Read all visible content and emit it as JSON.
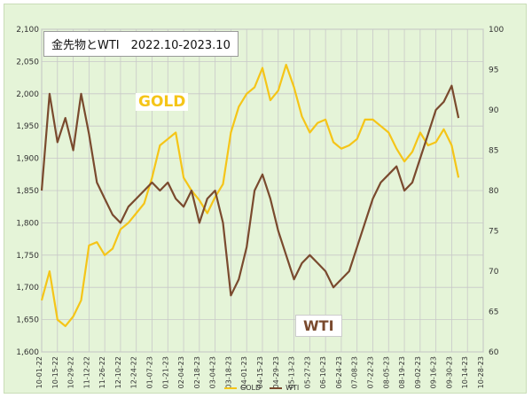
{
  "chart_data": {
    "type": "line",
    "title": "金先物とWTI　2022.10-2023.10",
    "annotations": {
      "gold_label": "GOLD",
      "wti_label": "WTI"
    },
    "x_ticks": [
      "10-01-22",
      "10-15-22",
      "10-29-22",
      "11-12-22",
      "11-26-22",
      "12-10-22",
      "12-24-22",
      "01-07-23",
      "01-21-23",
      "02-04-23",
      "02-18-23",
      "03-04-23",
      "03-18-23",
      "04-01-23",
      "04-15-23",
      "04-29-23",
      "05-13-23",
      "05-27-23",
      "06-10-23",
      "06-24-23",
      "07-08-23",
      "07-22-23",
      "08-05-23",
      "08-19-23",
      "09-02-23",
      "09-16-23",
      "09-30-23",
      "10-14-23",
      "10-28-23"
    ],
    "y_left": {
      "min": 1600,
      "max": 2100,
      "step": 50,
      "ticks": [
        "1,600",
        "1,650",
        "1,700",
        "1,750",
        "1,800",
        "1,850",
        "1,900",
        "1,950",
        "2,000",
        "2,050",
        "2,100"
      ]
    },
    "y_right": {
      "min": 60,
      "max": 100,
      "step": 5,
      "ticks": [
        "60",
        "65",
        "70",
        "75",
        "80",
        "85",
        "90",
        "95",
        "100"
      ]
    },
    "legend": [
      "GOLD",
      "WTI"
    ],
    "colors": {
      "gold": "#f5c518",
      "wti": "#7a4a2e",
      "grid": "#c8c8c8",
      "background": "#e5f4d8"
    },
    "series": [
      {
        "name": "GOLD",
        "axis": "left",
        "x": [
          "2022-10-01",
          "2022-10-08",
          "2022-10-15",
          "2022-10-22",
          "2022-10-29",
          "2022-11-05",
          "2022-11-12",
          "2022-11-19",
          "2022-11-26",
          "2022-12-03",
          "2022-12-10",
          "2022-12-17",
          "2022-12-24",
          "2022-12-31",
          "2023-01-07",
          "2023-01-14",
          "2023-01-21",
          "2023-01-28",
          "2023-02-04",
          "2023-02-11",
          "2023-02-18",
          "2023-02-25",
          "2023-03-04",
          "2023-03-11",
          "2023-03-18",
          "2023-03-25",
          "2023-04-01",
          "2023-04-08",
          "2023-04-15",
          "2023-04-22",
          "2023-04-29",
          "2023-05-06",
          "2023-05-13",
          "2023-05-20",
          "2023-05-27",
          "2023-06-03",
          "2023-06-10",
          "2023-06-17",
          "2023-06-24",
          "2023-07-01",
          "2023-07-08",
          "2023-07-15",
          "2023-07-22",
          "2023-07-29",
          "2023-08-05",
          "2023-08-12",
          "2023-08-19",
          "2023-08-26",
          "2023-09-02",
          "2023-09-09",
          "2023-09-16",
          "2023-09-23",
          "2023-09-30",
          "2023-10-06"
        ],
        "values": [
          1680,
          1725,
          1650,
          1640,
          1655,
          1680,
          1765,
          1770,
          1750,
          1760,
          1790,
          1800,
          1815,
          1830,
          1870,
          1920,
          1930,
          1940,
          1870,
          1850,
          1835,
          1815,
          1840,
          1860,
          1940,
          1980,
          2000,
          2010,
          2040,
          1990,
          2005,
          2045,
          2010,
          1965,
          1940,
          1955,
          1960,
          1925,
          1915,
          1920,
          1930,
          1960,
          1960,
          1950,
          1940,
          1915,
          1895,
          1910,
          1940,
          1920,
          1925,
          1945,
          1920,
          1870
        ]
      },
      {
        "name": "WTI",
        "axis": "right",
        "x": [
          "2022-10-01",
          "2022-10-08",
          "2022-10-15",
          "2022-10-22",
          "2022-10-29",
          "2022-11-05",
          "2022-11-12",
          "2022-11-19",
          "2022-11-26",
          "2022-12-03",
          "2022-12-10",
          "2022-12-17",
          "2022-12-24",
          "2022-12-31",
          "2023-01-07",
          "2023-01-14",
          "2023-01-21",
          "2023-01-28",
          "2023-02-04",
          "2023-02-11",
          "2023-02-18",
          "2023-02-25",
          "2023-03-04",
          "2023-03-11",
          "2023-03-18",
          "2023-03-25",
          "2023-04-01",
          "2023-04-08",
          "2023-04-15",
          "2023-04-22",
          "2023-04-29",
          "2023-05-06",
          "2023-05-13",
          "2023-05-20",
          "2023-05-27",
          "2023-06-03",
          "2023-06-10",
          "2023-06-17",
          "2023-06-24",
          "2023-07-01",
          "2023-07-08",
          "2023-07-15",
          "2023-07-22",
          "2023-07-29",
          "2023-08-05",
          "2023-08-12",
          "2023-08-19",
          "2023-08-26",
          "2023-09-02",
          "2023-09-09",
          "2023-09-16",
          "2023-09-23",
          "2023-09-30",
          "2023-10-06"
        ],
        "values": [
          80,
          92,
          86,
          89,
          85,
          92,
          87,
          81,
          79,
          77,
          76,
          78,
          79,
          80,
          81,
          80,
          81,
          79,
          78,
          80,
          76,
          79,
          80,
          76,
          67,
          69,
          73,
          80,
          82,
          79,
          75,
          72,
          69,
          71,
          72,
          71,
          70,
          68,
          69,
          70,
          73,
          76,
          79,
          81,
          82,
          83,
          80,
          81,
          84,
          87,
          90,
          91,
          93,
          89
        ]
      }
    ]
  }
}
